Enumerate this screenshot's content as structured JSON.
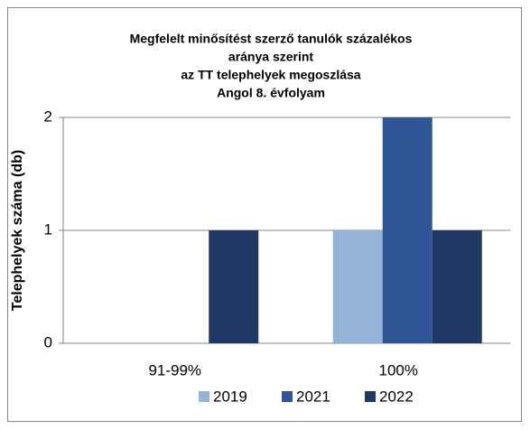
{
  "chart_data": {
    "type": "bar",
    "title": [
      "Megfelelt minősítést szerző tanulók százalékos",
      "aránya szerint",
      "az TT telephelyek megoszlása",
      "Angol 8. évfolyam"
    ],
    "y_label": "Telephelyek száma (db)",
    "categories": [
      "91-99%",
      "100%"
    ],
    "series": [
      {
        "name": "2019",
        "color": "#95b3d7",
        "values": [
          0,
          1
        ]
      },
      {
        "name": "2021",
        "color": "#2f5597",
        "values": [
          0,
          2
        ]
      },
      {
        "name": "2022",
        "color": "#1f3864",
        "values": [
          1,
          1
        ]
      }
    ],
    "ylim": [
      0,
      2
    ],
    "yticks": [
      0,
      1,
      2
    ],
    "grid": true,
    "legend": "bottom"
  }
}
